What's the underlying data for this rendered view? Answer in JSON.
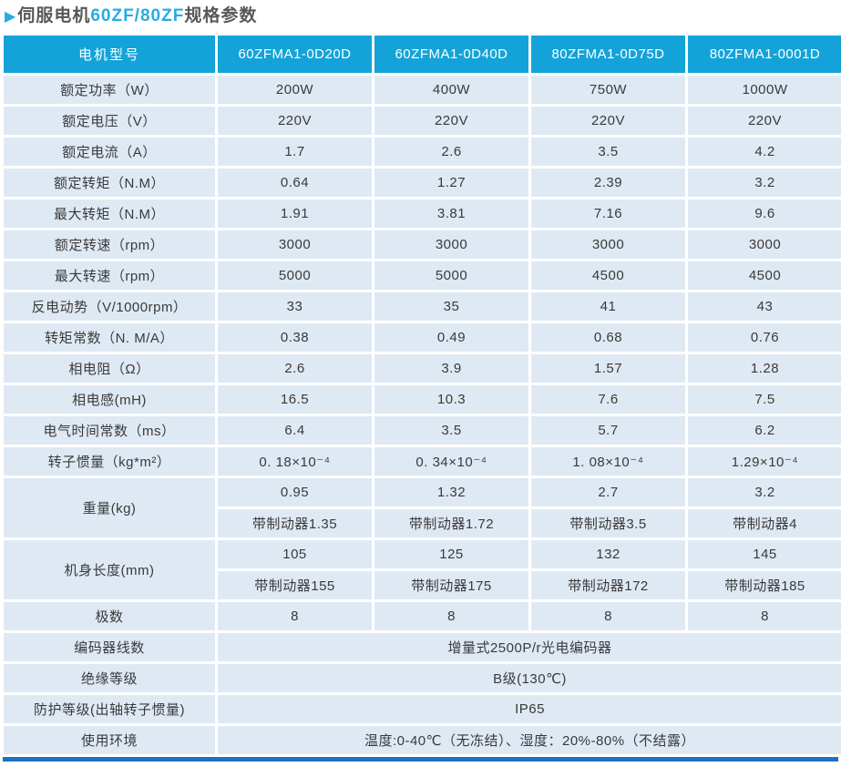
{
  "title": {
    "arrow": "▶",
    "prefix": "伺服电机",
    "accent": "60ZF/80ZF",
    "suffix": "规格参数"
  },
  "colors": {
    "header_bg": "#14a3d8",
    "cell_bg": "#dfe9f4",
    "title_text": "#595757",
    "accent": "#29abe2",
    "bottom_bar": "#1d70c2",
    "cell_text": "#3a3a3a"
  },
  "table": {
    "header": [
      "电机型号",
      "60ZFMA1-0D20D",
      "60ZFMA1-0D40D",
      "80ZFMA1-0D75D",
      "80ZFMA1-0001D"
    ],
    "rows": [
      {
        "label": "额定功率（W）",
        "values": [
          "200W",
          "400W",
          "750W",
          "1000W"
        ]
      },
      {
        "label": "额定电压（V）",
        "values": [
          "220V",
          "220V",
          "220V",
          "220V"
        ]
      },
      {
        "label": "额定电流（A）",
        "values": [
          "1.7",
          "2.6",
          "3.5",
          "4.2"
        ]
      },
      {
        "label": "额定转矩（N.M）",
        "values": [
          "0.64",
          "1.27",
          "2.39",
          "3.2"
        ]
      },
      {
        "label": "最大转矩（N.M）",
        "values": [
          "1.91",
          "3.81",
          "7.16",
          "9.6"
        ]
      },
      {
        "label": "额定转速（rpm）",
        "values": [
          "3000",
          "3000",
          "3000",
          "3000"
        ]
      },
      {
        "label": "最大转速（rpm）",
        "values": [
          "5000",
          "5000",
          "4500",
          "4500"
        ]
      },
      {
        "label": "反电动势（V/1000rpm）",
        "values": [
          "33",
          "35",
          "41",
          "43"
        ]
      },
      {
        "label": "转矩常数（N. M/A）",
        "values": [
          "0.38",
          "0.49",
          "0.68",
          "0.76"
        ]
      },
      {
        "label": "相电阻（Ω）",
        "values": [
          "2.6",
          "3.9",
          "1.57",
          "1.28"
        ]
      },
      {
        "label": "相电感(mH)",
        "values": [
          "16.5",
          "10.3",
          "7.6",
          "7.5"
        ]
      },
      {
        "label": "电气时间常数（ms）",
        "values": [
          "6.4",
          "3.5",
          "5.7",
          "6.2"
        ]
      },
      {
        "label": "转子惯量（kg*m²）",
        "values": [
          "0. 18×10⁻⁴",
          "0. 34×10⁻⁴",
          "1. 08×10⁻⁴",
          "1.29×10⁻⁴"
        ]
      },
      {
        "label": "重量(kg)",
        "rowspan": 2,
        "values": [
          "0.95",
          "1.32",
          "2.7",
          "3.2"
        ],
        "values2": [
          "带制动器1.35",
          "带制动器1.72",
          "带制动器3.5",
          "带制动器4"
        ]
      },
      {
        "label": "机身长度(mm)",
        "rowspan": 2,
        "values": [
          "105",
          "125",
          "132",
          "145"
        ],
        "values2": [
          "带制动器155",
          "带制动器175",
          "带制动器172",
          "带制动器185"
        ]
      },
      {
        "label": "极数",
        "values": [
          "8",
          "8",
          "8",
          "8"
        ]
      },
      {
        "label": "编码器线数",
        "span": "增量式2500P/r光电编码器"
      },
      {
        "label": "绝缘等级",
        "span": "B级(130℃)"
      },
      {
        "label": "防护等级(出轴转子惯量)",
        "span": "IP65"
      },
      {
        "label": "使用环境",
        "span": "温度:0-40℃（无冻结）、湿度：20%-80%（不结露）"
      }
    ]
  }
}
